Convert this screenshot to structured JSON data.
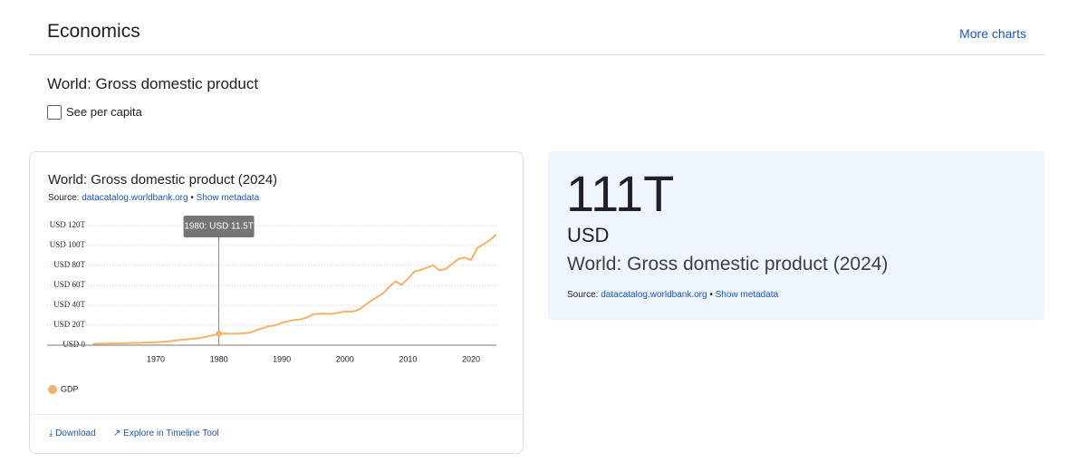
{
  "header": {
    "title": "Economics",
    "link": "More charts"
  },
  "section_title": "World: Gross domestic product",
  "checkbox_label": "See per capita",
  "chart_data": {
    "type": "line",
    "title": "World: Gross domestic product (2024)",
    "source_label": "Source:",
    "source_link": "datacatalog.worldbank.org",
    "separator": "•",
    "metadata_link": "Show metadata",
    "tooltip": {
      "x": 1980,
      "value": 11.5,
      "label": "1980: USD 11.5T"
    },
    "x": [
      1960,
      1961,
      1962,
      1963,
      1964,
      1965,
      1966,
      1967,
      1968,
      1969,
      1970,
      1971,
      1972,
      1973,
      1974,
      1975,
      1976,
      1977,
      1978,
      1979,
      1980,
      1981,
      1982,
      1983,
      1984,
      1985,
      1986,
      1987,
      1988,
      1989,
      1990,
      1991,
      1992,
      1993,
      1994,
      1995,
      1996,
      1997,
      1998,
      1999,
      2000,
      2001,
      2002,
      2003,
      2004,
      2005,
      2006,
      2007,
      2008,
      2009,
      2010,
      2011,
      2012,
      2013,
      2014,
      2015,
      2016,
      2017,
      2018,
      2019,
      2020,
      2021,
      2022,
      2023,
      2024
    ],
    "series": [
      {
        "name": "GDP",
        "color": "#f6b26b",
        "values": [
          1.38,
          1.44,
          1.54,
          1.65,
          1.8,
          1.96,
          2.13,
          2.26,
          2.44,
          2.7,
          2.96,
          3.27,
          3.78,
          4.59,
          5.3,
          5.9,
          6.42,
          7.26,
          8.54,
          9.93,
          11.5,
          11.7,
          11.4,
          11.6,
          12.0,
          12.7,
          15.1,
          17.1,
          19.1,
          20.0,
          22.6,
          23.9,
          25.4,
          25.9,
          27.8,
          31.0,
          31.6,
          31.5,
          31.4,
          32.6,
          33.8,
          33.6,
          34.9,
          39.1,
          44.1,
          47.8,
          51.7,
          58.2,
          64.0,
          60.7,
          66.6,
          73.8,
          75.5,
          77.8,
          80.0,
          75.2,
          76.5,
          81.5,
          86.6,
          87.9,
          85.5,
          97.5,
          101.3,
          105.4,
          111
        ]
      }
    ],
    "xlim": [
      1960,
      2024
    ],
    "xticks": [
      1970,
      1980,
      1990,
      2000,
      2010,
      2020
    ],
    "ylim": [
      0,
      120
    ],
    "yticks": [
      {
        "value": 0,
        "label": "USD 0"
      },
      {
        "value": 20,
        "label": "USD 20T"
      },
      {
        "value": 40,
        "label": "USD 40T"
      },
      {
        "value": 60,
        "label": "USD 60T"
      },
      {
        "value": 80,
        "label": "USD 80T"
      },
      {
        "value": 100,
        "label": "USD 100T"
      },
      {
        "value": 120,
        "label": "USD 120T"
      }
    ],
    "grid": true,
    "download": "Download",
    "explore": "Explore in Timeline Tool"
  },
  "stat_card": {
    "value": "111T",
    "unit": "USD",
    "title": "World: Gross domestic product (2024)",
    "source_label": "Source:",
    "source_link": "datacatalog.worldbank.org",
    "separator": "•",
    "metadata_link": "Show metadata"
  }
}
